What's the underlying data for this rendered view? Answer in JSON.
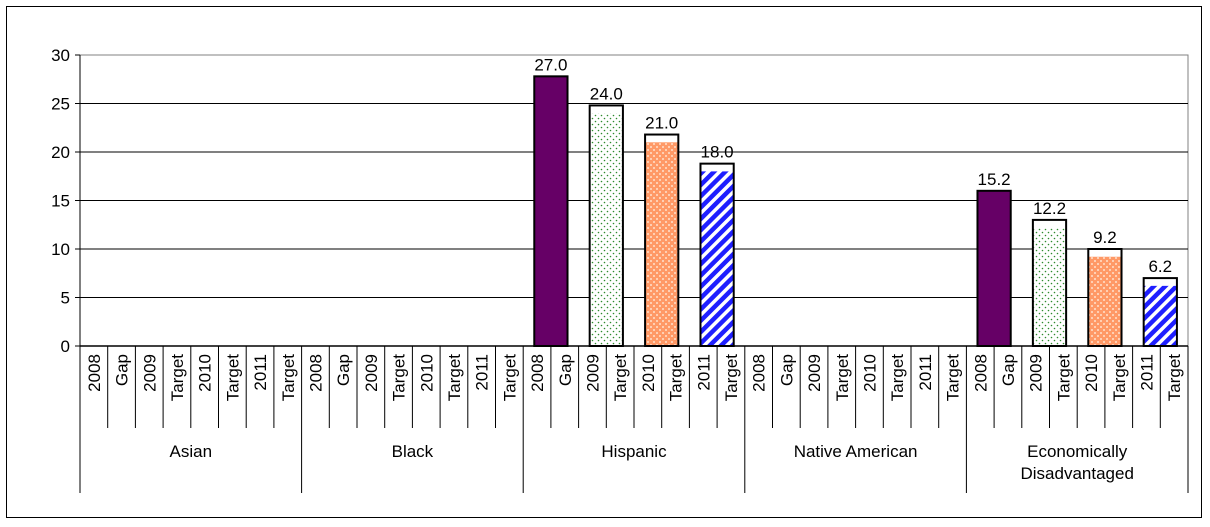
{
  "chart_data": {
    "type": "bar",
    "title": "",
    "xlabel": "",
    "ylabel": "",
    "ylim": [
      0,
      30
    ],
    "y_ticks": [
      0,
      5,
      10,
      15,
      20,
      25,
      30
    ],
    "grid": true,
    "legend": "none",
    "groups": [
      {
        "name": "Asian",
        "lines": [
          "Asian"
        ]
      },
      {
        "name": "Black",
        "lines": [
          "Black"
        ]
      },
      {
        "name": "Hispanic",
        "lines": [
          "Hispanic"
        ]
      },
      {
        "name": "Native American",
        "lines": [
          "Native American"
        ]
      },
      {
        "name": "Economically Disadvantaged",
        "lines": [
          "Economically",
          "Disadvantaged"
        ]
      }
    ],
    "sub_categories": [
      "2008",
      "Gap",
      "2009",
      "Target",
      "2010",
      "Target",
      "2011",
      "Target"
    ],
    "bar_series": [
      "2008 Gap",
      "2009 Target",
      "2010 Target",
      "2011 Target"
    ],
    "values": [
      [
        null,
        null,
        null,
        null
      ],
      [
        null,
        null,
        null,
        null
      ],
      [
        27.0,
        24.0,
        21.0,
        18.0
      ],
      [
        null,
        null,
        null,
        null
      ],
      [
        15.2,
        12.2,
        9.2,
        6.2
      ]
    ],
    "labels": [
      [
        "",
        "",
        "",
        ""
      ],
      [
        "",
        "",
        "",
        ""
      ],
      [
        "27.0",
        "24.0",
        "21.0",
        "18.0"
      ],
      [
        "",
        "",
        "",
        ""
      ],
      [
        "15.2",
        "12.2",
        "9.2",
        "6.2"
      ]
    ],
    "colors": {
      "2008 Gap": "#660066",
      "2009 Target": "#2e8b2e",
      "2010 Target": "#ff9966",
      "2011 Target": "#1f1fff"
    }
  }
}
